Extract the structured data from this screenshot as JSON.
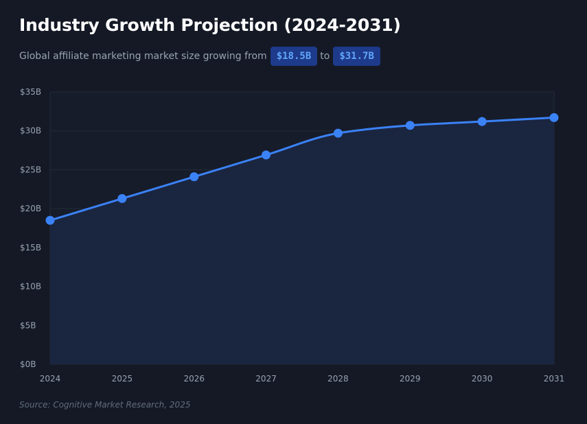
{
  "header": {
    "title": "Industry Growth Projection (2024-2031)",
    "subtitle_prefix": "Global affiliate marketing market size growing from",
    "badge_start": "$18.5B",
    "subtitle_mid": "to",
    "badge_end": "$31.7B"
  },
  "source": "Source: Cognitive Market Research, 2025",
  "colors": {
    "line": "#3b82f6",
    "fill": "#1a2540",
    "grid": "#232a38",
    "badge_bg": "#1e3a8a",
    "badge_text": "#60a5fa"
  },
  "chart_data": {
    "type": "area",
    "x": [
      "2024",
      "2025",
      "2026",
      "2027",
      "2028",
      "2029",
      "2030",
      "2031"
    ],
    "series": [
      {
        "values": [
          18.5,
          21.3,
          24.1,
          26.9,
          29.7,
          30.7,
          31.2,
          31.7
        ]
      }
    ],
    "ylim": [
      0,
      35
    ],
    "yticks": [
      {
        "value": 0,
        "label": "$0B"
      },
      {
        "value": 5,
        "label": "$5B"
      },
      {
        "value": 10,
        "label": "$10B"
      },
      {
        "value": 15,
        "label": "$15B"
      },
      {
        "value": 20,
        "label": "$20B"
      },
      {
        "value": 25,
        "label": "$25B"
      },
      {
        "value": 30,
        "label": "$30B"
      },
      {
        "value": 35,
        "label": "$35B"
      }
    ],
    "grid": true,
    "legend": "none"
  }
}
